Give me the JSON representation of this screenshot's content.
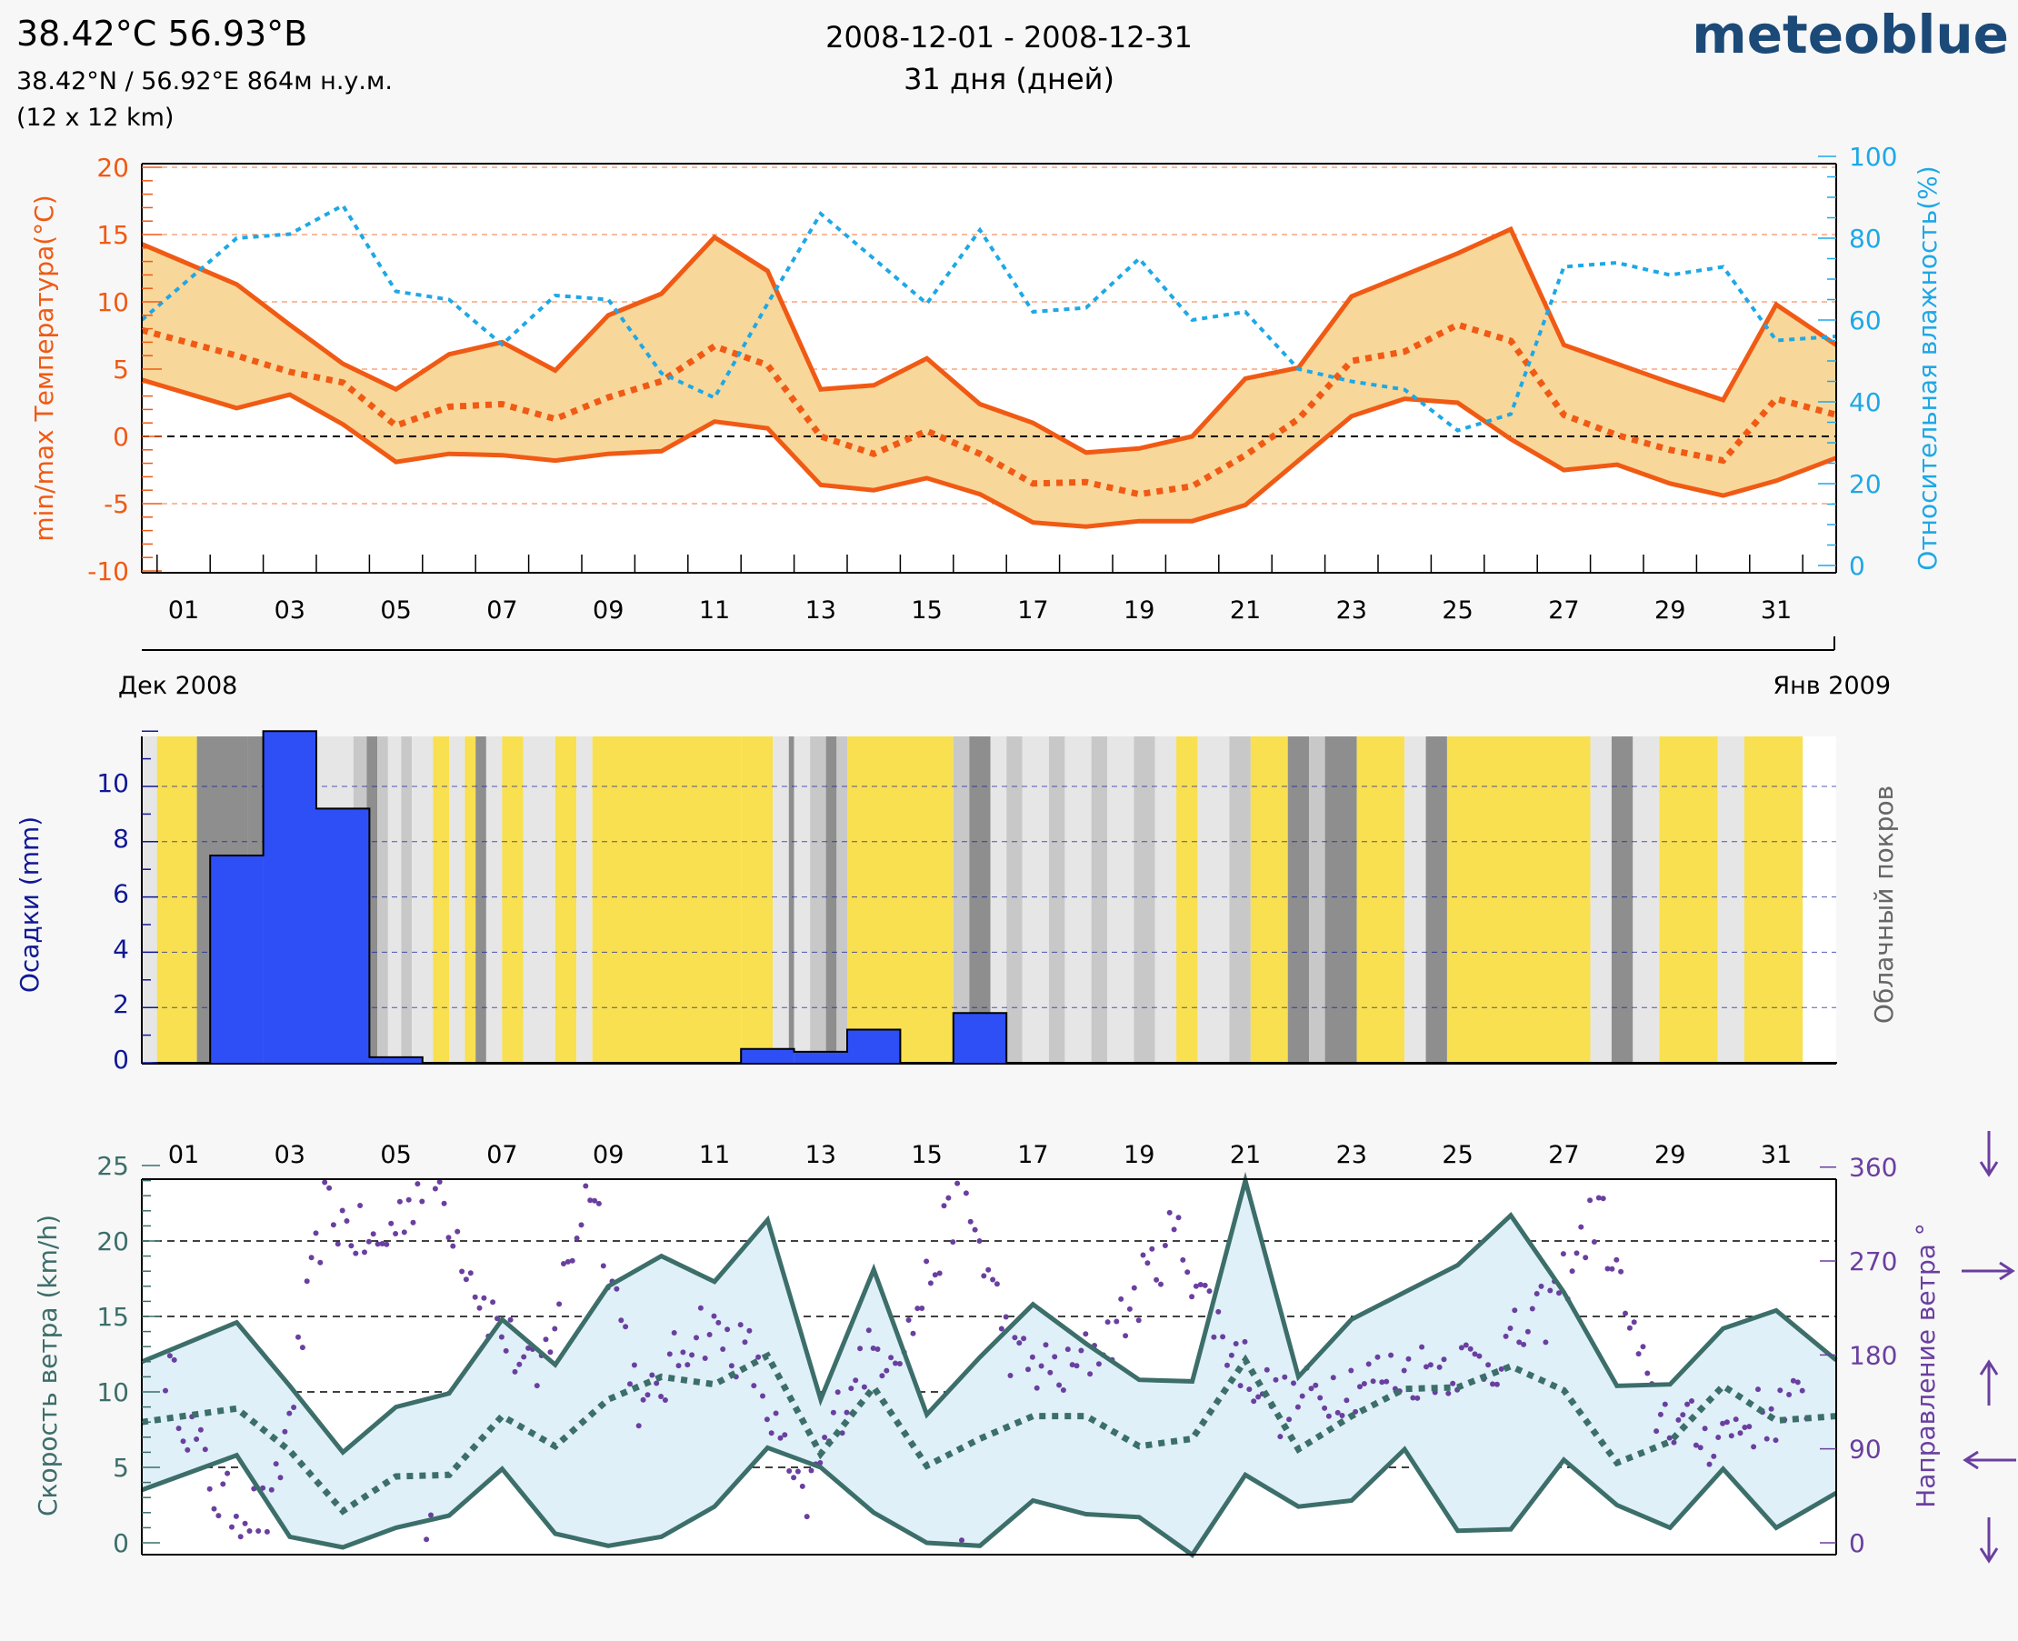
{
  "header": {
    "coords_title": "38.42°C 56.93°В",
    "coords_detail": "38.42°N / 56.92°E   864м н.у.м.",
    "resolution": "(12 x 12 km)",
    "date_range": "2008-12-01 - 2008-12-31",
    "duration": "31 дня (дней)",
    "brand": "meteoblue"
  },
  "colors": {
    "temperature": "#f05a14",
    "temperature_fill": "#f8d79a",
    "humidity": "#1ea8e6",
    "precip": "#2e4ff5",
    "precip_axis": "#101896",
    "cloud_sunny": "#f8e050",
    "cloud_light": "#e6e6e6",
    "cloud_mid": "#c8c8c8",
    "cloud_dark": "#8e8e8e",
    "wind": "#3c6e6a",
    "wind_fill": "#dff0f8",
    "wind_dir": "#6a3fa0",
    "brand": "#1c4a78"
  },
  "date_labels": {
    "start": "Дек 2008",
    "end": "Янв 2009"
  },
  "day_ticks": [
    "01",
    "03",
    "05",
    "07",
    "09",
    "11",
    "13",
    "15",
    "17",
    "19",
    "21",
    "23",
    "25",
    "27",
    "29",
    "31"
  ],
  "chart_data": [
    {
      "type": "line",
      "name": "temperature_humidity",
      "ylabel": "min/max Температура(°C)",
      "y2label": "Относительная влажность(%)",
      "ylim": [
        -10,
        20
      ],
      "y2lim": [
        0,
        100
      ],
      "yticks": [
        "20",
        "15",
        "10",
        "5",
        "0",
        "-5",
        "-10"
      ],
      "y2ticks": [
        "100",
        "80",
        "60",
        "40",
        "20",
        "0"
      ],
      "x": [
        1,
        2,
        3,
        4,
        5,
        6,
        7,
        8,
        9,
        10,
        11,
        12,
        13,
        14,
        15,
        16,
        17,
        18,
        19,
        20,
        21,
        22,
        23,
        24,
        25,
        26,
        27,
        28,
        29,
        30,
        31,
        32
      ],
      "series": [
        {
          "name": "Температура max",
          "values": [
            14.3,
            11.3,
            8.3,
            5.4,
            3.5,
            6.1,
            7.0,
            4.9,
            9.0,
            10.6,
            14.8,
            12.3,
            3.5,
            3.8,
            5.8,
            2.4,
            1.0,
            -1.2,
            -0.9,
            0.0,
            4.3,
            5.1,
            10.4,
            12.0,
            13.6,
            15.4,
            6.8,
            5.4,
            4.0,
            2.7,
            9.8,
            6.8
          ]
        },
        {
          "name": "Температура mean",
          "values": [
            7.9,
            6.0,
            4.8,
            4.0,
            0.8,
            2.2,
            2.4,
            1.3,
            2.9,
            4.1,
            6.7,
            5.3,
            0.0,
            -1.3,
            0.4,
            -1.3,
            -3.5,
            -3.4,
            -4.3,
            -3.7,
            -1.4,
            1.3,
            5.6,
            6.3,
            8.3,
            7.1,
            1.6,
            0.1,
            -1.0,
            -1.8,
            2.8,
            1.6
          ]
        },
        {
          "name": "Температура min",
          "values": [
            4.2,
            2.1,
            3.1,
            0.9,
            -1.9,
            -1.3,
            -1.4,
            -1.8,
            -1.3,
            -1.1,
            1.1,
            0.6,
            -3.6,
            -4.0,
            -3.1,
            -4.3,
            -6.4,
            -6.7,
            -6.3,
            -6.3,
            -5.1,
            -1.8,
            1.5,
            2.8,
            2.5,
            -0.2,
            -2.5,
            -2.1,
            -3.5,
            -4.4,
            -3.3,
            -1.6
          ]
        },
        {
          "name": "Относительная влажность",
          "axis": "y2",
          "values": [
            60,
            80,
            81,
            88,
            67,
            65,
            54,
            66,
            65,
            47,
            41,
            64,
            86,
            75,
            64,
            82,
            62,
            63,
            75,
            60,
            62,
            48,
            45,
            43,
            33,
            37,
            73,
            74,
            71,
            73,
            55,
            56
          ]
        }
      ]
    },
    {
      "type": "bar",
      "name": "precipitation_cloud",
      "ylabel": "Осадки (mm)",
      "y2label": "Облачный покров",
      "ylim": [
        0,
        12
      ],
      "yticks": [
        "10",
        "8",
        "6",
        "4",
        "2",
        "0"
      ],
      "x_days": [
        1,
        2,
        3,
        4,
        5,
        6,
        7,
        8,
        9,
        10,
        11,
        12,
        13,
        14,
        15,
        16,
        17,
        18,
        19,
        20,
        21,
        22,
        23,
        24,
        25,
        26,
        27,
        28,
        29,
        30,
        31,
        32
      ],
      "values": [
        0,
        7.5,
        12,
        9.2,
        0.2,
        0,
        0,
        0,
        0,
        0,
        0,
        0.5,
        0.4,
        1.2,
        0,
        1.8,
        0,
        0,
        0,
        0,
        0,
        0,
        0,
        0,
        0,
        0,
        0,
        0,
        0,
        0,
        0,
        0
      ],
      "cloud_cover_hourly_day_fraction": [
        {
          "d0": 0.5,
          "d1": 1.0,
          "level": "light"
        },
        {
          "d0": 1.0,
          "d1": 1.75,
          "level": "sunny"
        },
        {
          "d0": 1.75,
          "d1": 2.7,
          "level": "dark"
        },
        {
          "d0": 2.7,
          "d1": 3.9,
          "level": "dark"
        },
        {
          "d0": 3.9,
          "d1": 4.7,
          "level": "light"
        },
        {
          "d0": 4.7,
          "d1": 4.95,
          "level": "mid"
        },
        {
          "d0": 4.95,
          "d1": 5.15,
          "level": "dark"
        },
        {
          "d0": 5.15,
          "d1": 5.35,
          "level": "mid"
        },
        {
          "d0": 5.35,
          "d1": 5.6,
          "level": "light"
        },
        {
          "d0": 5.6,
          "d1": 5.8,
          "level": "mid"
        },
        {
          "d0": 5.8,
          "d1": 6.2,
          "level": "light"
        },
        {
          "d0": 6.2,
          "d1": 6.5,
          "level": "sunny"
        },
        {
          "d0": 6.5,
          "d1": 6.8,
          "level": "light"
        },
        {
          "d0": 6.8,
          "d1": 7.0,
          "level": "sunny"
        },
        {
          "d0": 7.0,
          "d1": 7.2,
          "level": "dark"
        },
        {
          "d0": 7.2,
          "d1": 7.5,
          "level": "light"
        },
        {
          "d0": 7.5,
          "d1": 7.9,
          "level": "sunny"
        },
        {
          "d0": 7.9,
          "d1": 8.5,
          "level": "light"
        },
        {
          "d0": 8.5,
          "d1": 8.9,
          "level": "sunny"
        },
        {
          "d0": 8.9,
          "d1": 9.2,
          "level": "light"
        },
        {
          "d0": 9.2,
          "d1": 12.0,
          "level": "sunny"
        },
        {
          "d0": 12.0,
          "d1": 12.6,
          "level": "sunny"
        },
        {
          "d0": 12.6,
          "d1": 12.9,
          "level": "light"
        },
        {
          "d0": 12.9,
          "d1": 13.0,
          "level": "dark"
        },
        {
          "d0": 13.0,
          "d1": 13.3,
          "level": "light"
        },
        {
          "d0": 13.3,
          "d1": 13.6,
          "level": "mid"
        },
        {
          "d0": 13.6,
          "d1": 13.8,
          "level": "dark"
        },
        {
          "d0": 13.8,
          "d1": 14.0,
          "level": "mid"
        },
        {
          "d0": 14.0,
          "d1": 16.0,
          "level": "sunny"
        },
        {
          "d0": 16.0,
          "d1": 16.3,
          "level": "mid"
        },
        {
          "d0": 16.3,
          "d1": 16.7,
          "level": "dark"
        },
        {
          "d0": 16.7,
          "d1": 17.0,
          "level": "light"
        },
        {
          "d0": 17.0,
          "d1": 17.3,
          "level": "mid"
        },
        {
          "d0": 17.3,
          "d1": 17.8,
          "level": "light"
        },
        {
          "d0": 17.8,
          "d1": 18.1,
          "level": "mid"
        },
        {
          "d0": 18.1,
          "d1": 18.6,
          "level": "light"
        },
        {
          "d0": 18.6,
          "d1": 18.9,
          "level": "mid"
        },
        {
          "d0": 18.9,
          "d1": 19.4,
          "level": "light"
        },
        {
          "d0": 19.4,
          "d1": 19.8,
          "level": "mid"
        },
        {
          "d0": 19.8,
          "d1": 20.2,
          "level": "light"
        },
        {
          "d0": 20.2,
          "d1": 20.6,
          "level": "sunny"
        },
        {
          "d0": 20.6,
          "d1": 21.2,
          "level": "light"
        },
        {
          "d0": 21.2,
          "d1": 21.6,
          "level": "mid"
        },
        {
          "d0": 21.6,
          "d1": 22.3,
          "level": "sunny"
        },
        {
          "d0": 22.3,
          "d1": 22.7,
          "level": "dark"
        },
        {
          "d0": 22.7,
          "d1": 23.0,
          "level": "mid"
        },
        {
          "d0": 23.0,
          "d1": 23.6,
          "level": "dark"
        },
        {
          "d0": 23.6,
          "d1": 24.5,
          "level": "sunny"
        },
        {
          "d0": 24.5,
          "d1": 24.9,
          "level": "light"
        },
        {
          "d0": 24.9,
          "d1": 25.3,
          "level": "dark"
        },
        {
          "d0": 25.3,
          "d1": 28.0,
          "level": "sunny"
        },
        {
          "d0": 28.0,
          "d1": 28.4,
          "level": "light"
        },
        {
          "d0": 28.4,
          "d1": 28.8,
          "level": "dark"
        },
        {
          "d0": 28.8,
          "d1": 29.3,
          "level": "light"
        },
        {
          "d0": 29.3,
          "d1": 30.4,
          "level": "sunny"
        },
        {
          "d0": 30.4,
          "d1": 30.9,
          "level": "light"
        },
        {
          "d0": 30.9,
          "d1": 32.0,
          "level": "sunny"
        }
      ]
    },
    {
      "type": "line",
      "name": "wind",
      "ylabel": "Скорость ветра (km/h)",
      "y2label": "Направление ветра °",
      "ylim": [
        0,
        25
      ],
      "y2lim": [
        0,
        360
      ],
      "yticks": [
        "25",
        "20",
        "15",
        "10",
        "5",
        "0"
      ],
      "y2ticks": [
        "360",
        "270",
        "180",
        "90",
        "0"
      ],
      "x": [
        1,
        2,
        3,
        4,
        5,
        6,
        7,
        8,
        9,
        10,
        11,
        12,
        13,
        14,
        15,
        16,
        17,
        18,
        19,
        20,
        21,
        22,
        23,
        24,
        25,
        26,
        27,
        28,
        29,
        30,
        31,
        32
      ],
      "series": [
        {
          "name": "Скорость ветра max",
          "values": [
            12.0,
            14.6,
            10.4,
            6.0,
            9.0,
            9.9,
            14.8,
            11.8,
            17.0,
            19.0,
            17.3,
            21.4,
            9.5,
            18.1,
            8.5,
            12.3,
            15.8,
            13.2,
            10.8,
            10.7,
            24.0,
            11.0,
            14.8,
            16.6,
            18.4,
            21.7,
            16.6,
            10.4,
            10.5,
            14.2,
            15.4,
            12.1
          ]
        },
        {
          "name": "Скорость ветра mean",
          "values": [
            8.0,
            8.9,
            6.1,
            2.1,
            4.4,
            4.5,
            8.4,
            6.4,
            9.5,
            11.0,
            10.5,
            12.4,
            5.9,
            10.3,
            5.1,
            6.9,
            8.4,
            8.4,
            6.4,
            6.9,
            12.1,
            6.2,
            8.4,
            10.2,
            10.3,
            11.7,
            10.1,
            5.3,
            6.7,
            10.4,
            8.1,
            8.4
          ]
        },
        {
          "name": "Скорость ветра min",
          "values": [
            3.5,
            5.8,
            0.4,
            -0.3,
            1.0,
            1.8,
            4.9,
            0.6,
            -0.2,
            0.4,
            2.4,
            6.3,
            5.0,
            2.0,
            0.0,
            -0.2,
            2.8,
            1.9,
            1.7,
            -0.8,
            4.5,
            2.4,
            2.8,
            6.2,
            0.8,
            0.9,
            5.5,
            2.5,
            1.0,
            4.9,
            1.0,
            3.3
          ]
        }
      ]
    }
  ]
}
